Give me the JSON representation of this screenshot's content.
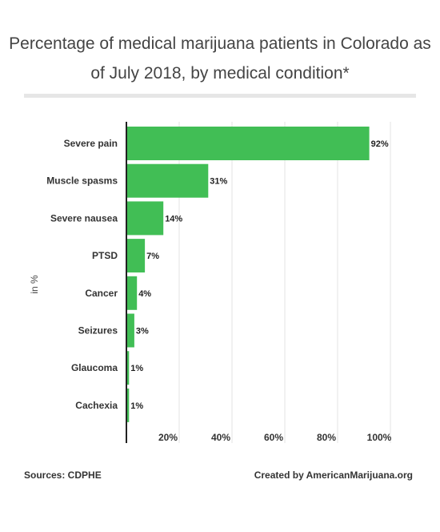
{
  "title": "Percentage of medical marijuana patients in Colorado as of July 2018, by medical condition*",
  "chart_data": {
    "type": "bar",
    "orientation": "horizontal",
    "categories": [
      "Severe pain",
      "Muscle spasms",
      "Severe nausea",
      "PTSD",
      "Cancer",
      "Seizures",
      "Glaucoma",
      "Cachexia"
    ],
    "values": [
      92,
      31,
      14,
      7,
      4,
      3,
      1,
      1
    ],
    "data_labels": [
      "92%",
      "31%",
      "14%",
      "7%",
      "4%",
      "3%",
      "1%",
      "1%"
    ],
    "ylabel": "in %",
    "xlim": [
      0,
      100
    ],
    "x_ticks": [
      20,
      40,
      60,
      80,
      100
    ],
    "x_tick_labels": [
      "20%",
      "40%",
      "60%",
      "80%",
      "100%"
    ],
    "grid": true,
    "bar_color": "#41be55"
  },
  "footer": {
    "source": "Sources: CDPHE",
    "credit": "Created by AmericanMarijuana.org"
  }
}
